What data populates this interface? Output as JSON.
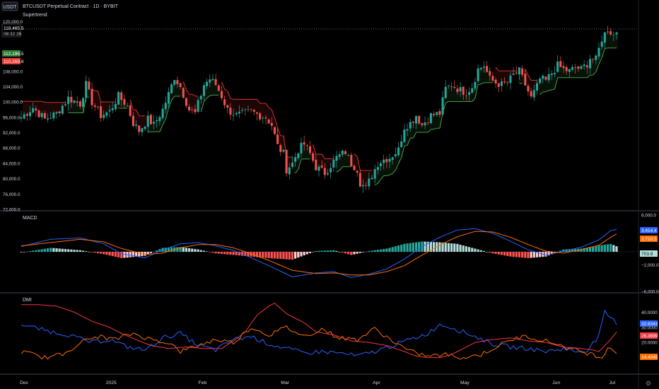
{
  "header": {
    "currency_button": "USDT",
    "symbol_title": "BTCUSDT Perpetual Contract · 1D · BYBIT",
    "indicator_name": "Supertrend"
  },
  "colors": {
    "background": "#000000",
    "up": "#26a69a",
    "down": "#ef5350",
    "supertrend_up": "#4caf50",
    "supertrend_down": "#e53935",
    "macd": "#2962ff",
    "signal": "#ff6d00",
    "hist_pos_strong": "#26a69a",
    "hist_pos_weak": "#b2dfdb",
    "hist_neg_strong": "#ff5252",
    "hist_neg_weak": "#ffcdd2",
    "dmi_plus": "#2962ff",
    "dmi_minus": "#ff6d00",
    "adx": "#f23645"
  },
  "price_pane": {
    "last_price": "118,465.5",
    "countdown": "08:32:26",
    "supertrend_label": "112,196.5",
    "alt_label": "110,269.8",
    "ticks": [
      "120,000.0",
      "112,000.0",
      "108,000.0",
      "104,000.0",
      "100,000.0",
      "96,000.0",
      "92,000.0",
      "88,000.0",
      "84,000.0",
      "80,000.0",
      "76,000.0",
      "72,000.0"
    ]
  },
  "macd_pane": {
    "title": "MACD",
    "ticks": [
      "6,000.0",
      "2,000.0",
      "0.0",
      "−2,000.0",
      "−6,000.0"
    ],
    "macd_label": "3,414.4",
    "signal_label": "2,710.5",
    "hist_label": "703.9"
  },
  "dmi_pane": {
    "title": "DMI",
    "ticks": [
      "40.0000",
      "30.0000",
      "20.0000",
      "10.0000"
    ],
    "plus_label": "32.8343",
    "adx_label": "26.3699",
    "minus_label": "14.4045"
  },
  "time_axis": [
    "Dec",
    "2025",
    "Feb",
    "Mar",
    "Apr",
    "May",
    "Jun",
    "Jul"
  ],
  "chart_data": {
    "type": "candlestick",
    "symbol": "BTCUSDT",
    "interval": "1D",
    "ylim": [
      72000,
      124000
    ],
    "close_path": [
      [
        0,
        96000
      ],
      [
        4,
        98500
      ],
      [
        8,
        95500
      ],
      [
        12,
        97000
      ],
      [
        16,
        101000
      ],
      [
        20,
        99500
      ],
      [
        22,
        104500
      ],
      [
        24,
        100000
      ],
      [
        27,
        96500
      ],
      [
        30,
        97500
      ],
      [
        33,
        101500
      ],
      [
        36,
        99000
      ],
      [
        38,
        94500
      ],
      [
        40,
        92500
      ],
      [
        43,
        95500
      ],
      [
        45,
        94000
      ],
      [
        48,
        98000
      ],
      [
        50,
        102000
      ],
      [
        52,
        106500
      ],
      [
        54,
        104000
      ],
      [
        57,
        98000
      ],
      [
        59,
        97000
      ],
      [
        62,
        104500
      ],
      [
        64,
        106000
      ],
      [
        66,
        104500
      ],
      [
        68,
        101500
      ],
      [
        70,
        98000
      ],
      [
        73,
        96500
      ],
      [
        76,
        97000
      ],
      [
        78,
        97500
      ],
      [
        81,
        96500
      ],
      [
        83,
        96000
      ],
      [
        85,
        94000
      ],
      [
        87,
        88500
      ],
      [
        89,
        86500
      ],
      [
        90,
        82500
      ],
      [
        92,
        84000
      ],
      [
        94,
        87500
      ],
      [
        96,
        89000
      ],
      [
        98,
        86500
      ],
      [
        100,
        83000
      ],
      [
        103,
        81500
      ],
      [
        105,
        83500
      ],
      [
        107,
        85500
      ],
      [
        110,
        87000
      ],
      [
        112,
        84000
      ],
      [
        114,
        82500
      ],
      [
        115,
        79000
      ],
      [
        117,
        77500
      ],
      [
        119,
        81000
      ],
      [
        121,
        84000
      ],
      [
        123,
        85000
      ],
      [
        125,
        85500
      ],
      [
        128,
        87500
      ],
      [
        130,
        93500
      ],
      [
        132,
        94500
      ],
      [
        134,
        96500
      ],
      [
        136,
        94000
      ],
      [
        139,
        96500
      ],
      [
        142,
        97000
      ],
      [
        144,
        103500
      ],
      [
        146,
        104500
      ],
      [
        149,
        103000
      ],
      [
        151,
        102500
      ],
      [
        153,
        104000
      ],
      [
        155,
        108500
      ],
      [
        157,
        109500
      ],
      [
        159,
        106000
      ],
      [
        161,
        105000
      ],
      [
        163,
        104500
      ],
      [
        165,
        105000
      ],
      [
        167,
        107000
      ],
      [
        169,
        108000
      ],
      [
        171,
        104500
      ],
      [
        173,
        101000
      ],
      [
        175,
        104000
      ],
      [
        176,
        106000
      ],
      [
        178,
        105500
      ],
      [
        180,
        107500
      ],
      [
        182,
        109500
      ],
      [
        184,
        108500
      ],
      [
        186,
        108000
      ],
      [
        188,
        109000
      ],
      [
        190,
        108500
      ],
      [
        192,
        110000
      ],
      [
        193,
        111500
      ],
      [
        195,
        111000
      ],
      [
        197,
        116500
      ],
      [
        199,
        119000
      ],
      [
        201,
        117500
      ],
      [
        202,
        118500
      ]
    ],
    "macd": [
      [
        0,
        800
      ],
      [
        10,
        1900
      ],
      [
        20,
        2100
      ],
      [
        28,
        1200
      ],
      [
        34,
        -300
      ],
      [
        42,
        -900
      ],
      [
        48,
        300
      ],
      [
        54,
        1200
      ],
      [
        60,
        1400
      ],
      [
        66,
        900
      ],
      [
        72,
        200
      ],
      [
        78,
        -900
      ],
      [
        84,
        -2100
      ],
      [
        92,
        -3800
      ],
      [
        100,
        -3200
      ],
      [
        106,
        -3000
      ],
      [
        112,
        -3900
      ],
      [
        118,
        -3400
      ],
      [
        124,
        -2600
      ],
      [
        130,
        -1100
      ],
      [
        136,
        800
      ],
      [
        142,
        2200
      ],
      [
        148,
        3300
      ],
      [
        154,
        3500
      ],
      [
        160,
        2800
      ],
      [
        166,
        1600
      ],
      [
        172,
        300
      ],
      [
        178,
        -500
      ],
      [
        184,
        100
      ],
      [
        190,
        700
      ],
      [
        196,
        1800
      ],
      [
        200,
        3200
      ],
      [
        202,
        3400
      ]
    ],
    "signal": [
      [
        0,
        900
      ],
      [
        10,
        1400
      ],
      [
        20,
        1900
      ],
      [
        28,
        1500
      ],
      [
        34,
        500
      ],
      [
        42,
        -400
      ],
      [
        48,
        -200
      ],
      [
        54,
        600
      ],
      [
        60,
        1100
      ],
      [
        66,
        1100
      ],
      [
        72,
        600
      ],
      [
        78,
        -300
      ],
      [
        84,
        -1300
      ],
      [
        92,
        -2800
      ],
      [
        100,
        -3300
      ],
      [
        106,
        -3200
      ],
      [
        112,
        -3500
      ],
      [
        118,
        -3500
      ],
      [
        124,
        -3000
      ],
      [
        130,
        -2100
      ],
      [
        136,
        -500
      ],
      [
        142,
        1000
      ],
      [
        148,
        2300
      ],
      [
        154,
        3100
      ],
      [
        160,
        3000
      ],
      [
        166,
        2200
      ],
      [
        172,
        1100
      ],
      [
        178,
        100
      ],
      [
        184,
        -200
      ],
      [
        190,
        300
      ],
      [
        196,
        1000
      ],
      [
        200,
        2200
      ],
      [
        202,
        2700
      ]
    ],
    "dmi_plus": [
      [
        0,
        32
      ],
      [
        8,
        28
      ],
      [
        16,
        25
      ],
      [
        24,
        20
      ],
      [
        30,
        22
      ],
      [
        36,
        17
      ],
      [
        42,
        15
      ],
      [
        48,
        23
      ],
      [
        54,
        26
      ],
      [
        60,
        18
      ],
      [
        66,
        15
      ],
      [
        72,
        22
      ],
      [
        78,
        24
      ],
      [
        84,
        19
      ],
      [
        90,
        16
      ],
      [
        96,
        13
      ],
      [
        102,
        14
      ],
      [
        108,
        13
      ],
      [
        114,
        11
      ],
      [
        120,
        14
      ],
      [
        126,
        18
      ],
      [
        132,
        22
      ],
      [
        138,
        26
      ],
      [
        142,
        32
      ],
      [
        146,
        30
      ],
      [
        150,
        27
      ],
      [
        154,
        24
      ],
      [
        160,
        19
      ],
      [
        166,
        17
      ],
      [
        172,
        16
      ],
      [
        178,
        14
      ],
      [
        184,
        16
      ],
      [
        188,
        14
      ],
      [
        192,
        15
      ],
      [
        196,
        24
      ],
      [
        198,
        40
      ],
      [
        200,
        36
      ],
      [
        202,
        33
      ]
    ],
    "dmi_minus": [
      [
        0,
        14
      ],
      [
        8,
        10
      ],
      [
        14,
        12
      ],
      [
        20,
        20
      ],
      [
        26,
        24
      ],
      [
        32,
        22
      ],
      [
        38,
        26
      ],
      [
        44,
        22
      ],
      [
        50,
        20
      ],
      [
        54,
        14
      ],
      [
        60,
        18
      ],
      [
        66,
        22
      ],
      [
        72,
        20
      ],
      [
        78,
        30
      ],
      [
        84,
        25
      ],
      [
        90,
        30
      ],
      [
        96,
        24
      ],
      [
        102,
        29
      ],
      [
        108,
        23
      ],
      [
        114,
        22
      ],
      [
        120,
        29
      ],
      [
        126,
        21
      ],
      [
        132,
        14
      ],
      [
        138,
        11
      ],
      [
        144,
        12
      ],
      [
        150,
        10
      ],
      [
        156,
        12
      ],
      [
        162,
        18
      ],
      [
        168,
        23
      ],
      [
        172,
        24
      ],
      [
        176,
        22
      ],
      [
        182,
        19
      ],
      [
        186,
        16
      ],
      [
        190,
        14
      ],
      [
        194,
        12
      ],
      [
        197,
        10
      ],
      [
        199,
        17
      ],
      [
        202,
        14
      ]
    ],
    "adx": [
      [
        0,
        45
      ],
      [
        6,
        45
      ],
      [
        12,
        44
      ],
      [
        18,
        40
      ],
      [
        24,
        34
      ],
      [
        30,
        30
      ],
      [
        34,
        26
      ],
      [
        40,
        21
      ],
      [
        44,
        18
      ],
      [
        50,
        16
      ],
      [
        56,
        17
      ],
      [
        62,
        16
      ],
      [
        68,
        16
      ],
      [
        72,
        21
      ],
      [
        76,
        27
      ],
      [
        80,
        38
      ],
      [
        84,
        44
      ],
      [
        86,
        46
      ],
      [
        90,
        39
      ],
      [
        96,
        33
      ],
      [
        100,
        27
      ],
      [
        106,
        25
      ],
      [
        112,
        21
      ],
      [
        118,
        20
      ],
      [
        124,
        18
      ],
      [
        130,
        14
      ],
      [
        134,
        11
      ],
      [
        138,
        10
      ],
      [
        142,
        10
      ],
      [
        146,
        12
      ],
      [
        150,
        16
      ],
      [
        154,
        20
      ],
      [
        160,
        22
      ],
      [
        166,
        23
      ],
      [
        172,
        21
      ],
      [
        178,
        20
      ],
      [
        184,
        17
      ],
      [
        190,
        16
      ],
      [
        194,
        15
      ],
      [
        196,
        14
      ],
      [
        198,
        18
      ],
      [
        200,
        22
      ],
      [
        202,
        27
      ]
    ],
    "dmi_ylim": [
      0,
      50
    ],
    "macd_ylim": [
      -6000,
      6000
    ],
    "time_labels": [
      "Dec",
      "2025",
      "Feb",
      "Mar",
      "Apr",
      "May",
      "Jun",
      "Jul"
    ]
  }
}
